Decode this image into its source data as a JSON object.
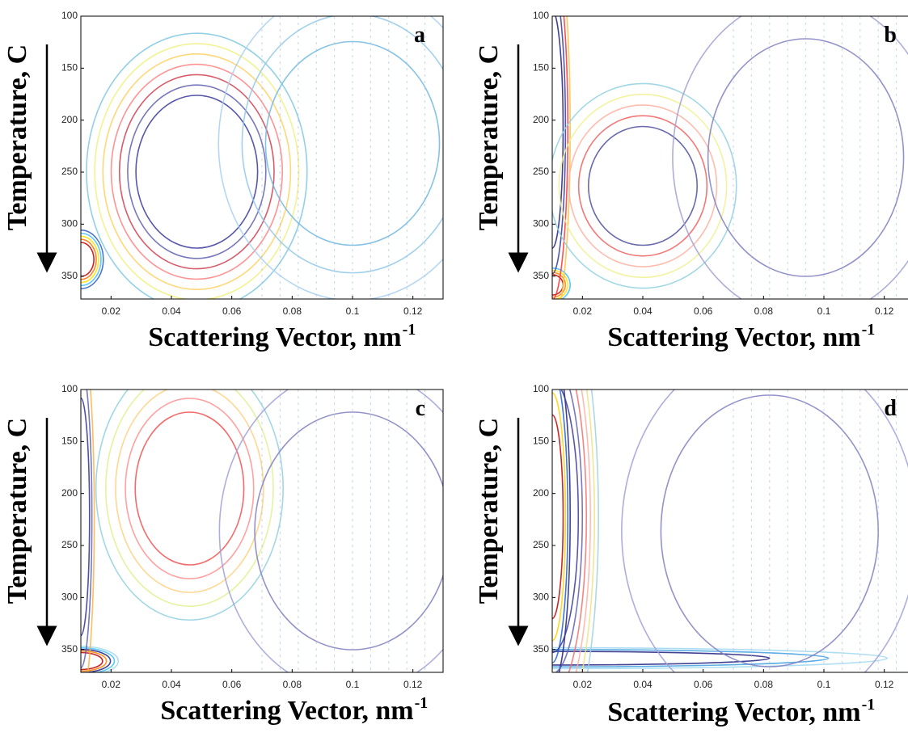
{
  "chart_data": [
    {
      "type": "contour",
      "panel_label": "a",
      "xlabel": "Scattering Vector, nm",
      "xlabel_superscript": "-1",
      "ylabel": "Temperature, C",
      "xlim": [
        0.01,
        0.13
      ],
      "xticks": [
        0.02,
        0.04,
        0.06,
        0.08,
        0.1,
        0.12
      ],
      "ylim": [
        100,
        372
      ],
      "yticks": [
        100,
        150,
        200,
        250,
        300,
        350
      ],
      "y_inverted": true
    },
    {
      "type": "contour",
      "panel_label": "b",
      "xlabel": "Scattering Vector, nm",
      "xlabel_superscript": "-1",
      "ylabel": "Temperature, C",
      "xlim": [
        0.01,
        0.13
      ],
      "xticks": [
        0.02,
        0.04,
        0.06,
        0.08,
        0.1,
        0.12
      ],
      "ylim": [
        100,
        372
      ],
      "yticks": [
        100,
        150,
        200,
        250,
        300,
        350
      ],
      "y_inverted": true
    },
    {
      "type": "contour",
      "panel_label": "c",
      "xlabel": "Scattering Vector, nm",
      "xlabel_superscript": "-1",
      "ylabel": "Temperature, C",
      "xlim": [
        0.01,
        0.13
      ],
      "xticks": [
        0.02,
        0.04,
        0.06,
        0.08,
        0.1,
        0.12
      ],
      "ylim": [
        100,
        372
      ],
      "yticks": [
        100,
        150,
        200,
        250,
        300,
        350
      ],
      "y_inverted": true
    },
    {
      "type": "contour",
      "panel_label": "d",
      "xlabel": "Scattering Vector, nm",
      "xlabel_superscript": "-1",
      "ylabel": "Temperature, C",
      "xlim": [
        0.01,
        0.13
      ],
      "xticks": [
        0.02,
        0.04,
        0.06,
        0.08,
        0.1,
        0.12
      ],
      "ylim": [
        100,
        372
      ],
      "yticks": [
        100,
        150,
        200,
        250,
        300,
        350
      ],
      "y_inverted": true
    }
  ]
}
